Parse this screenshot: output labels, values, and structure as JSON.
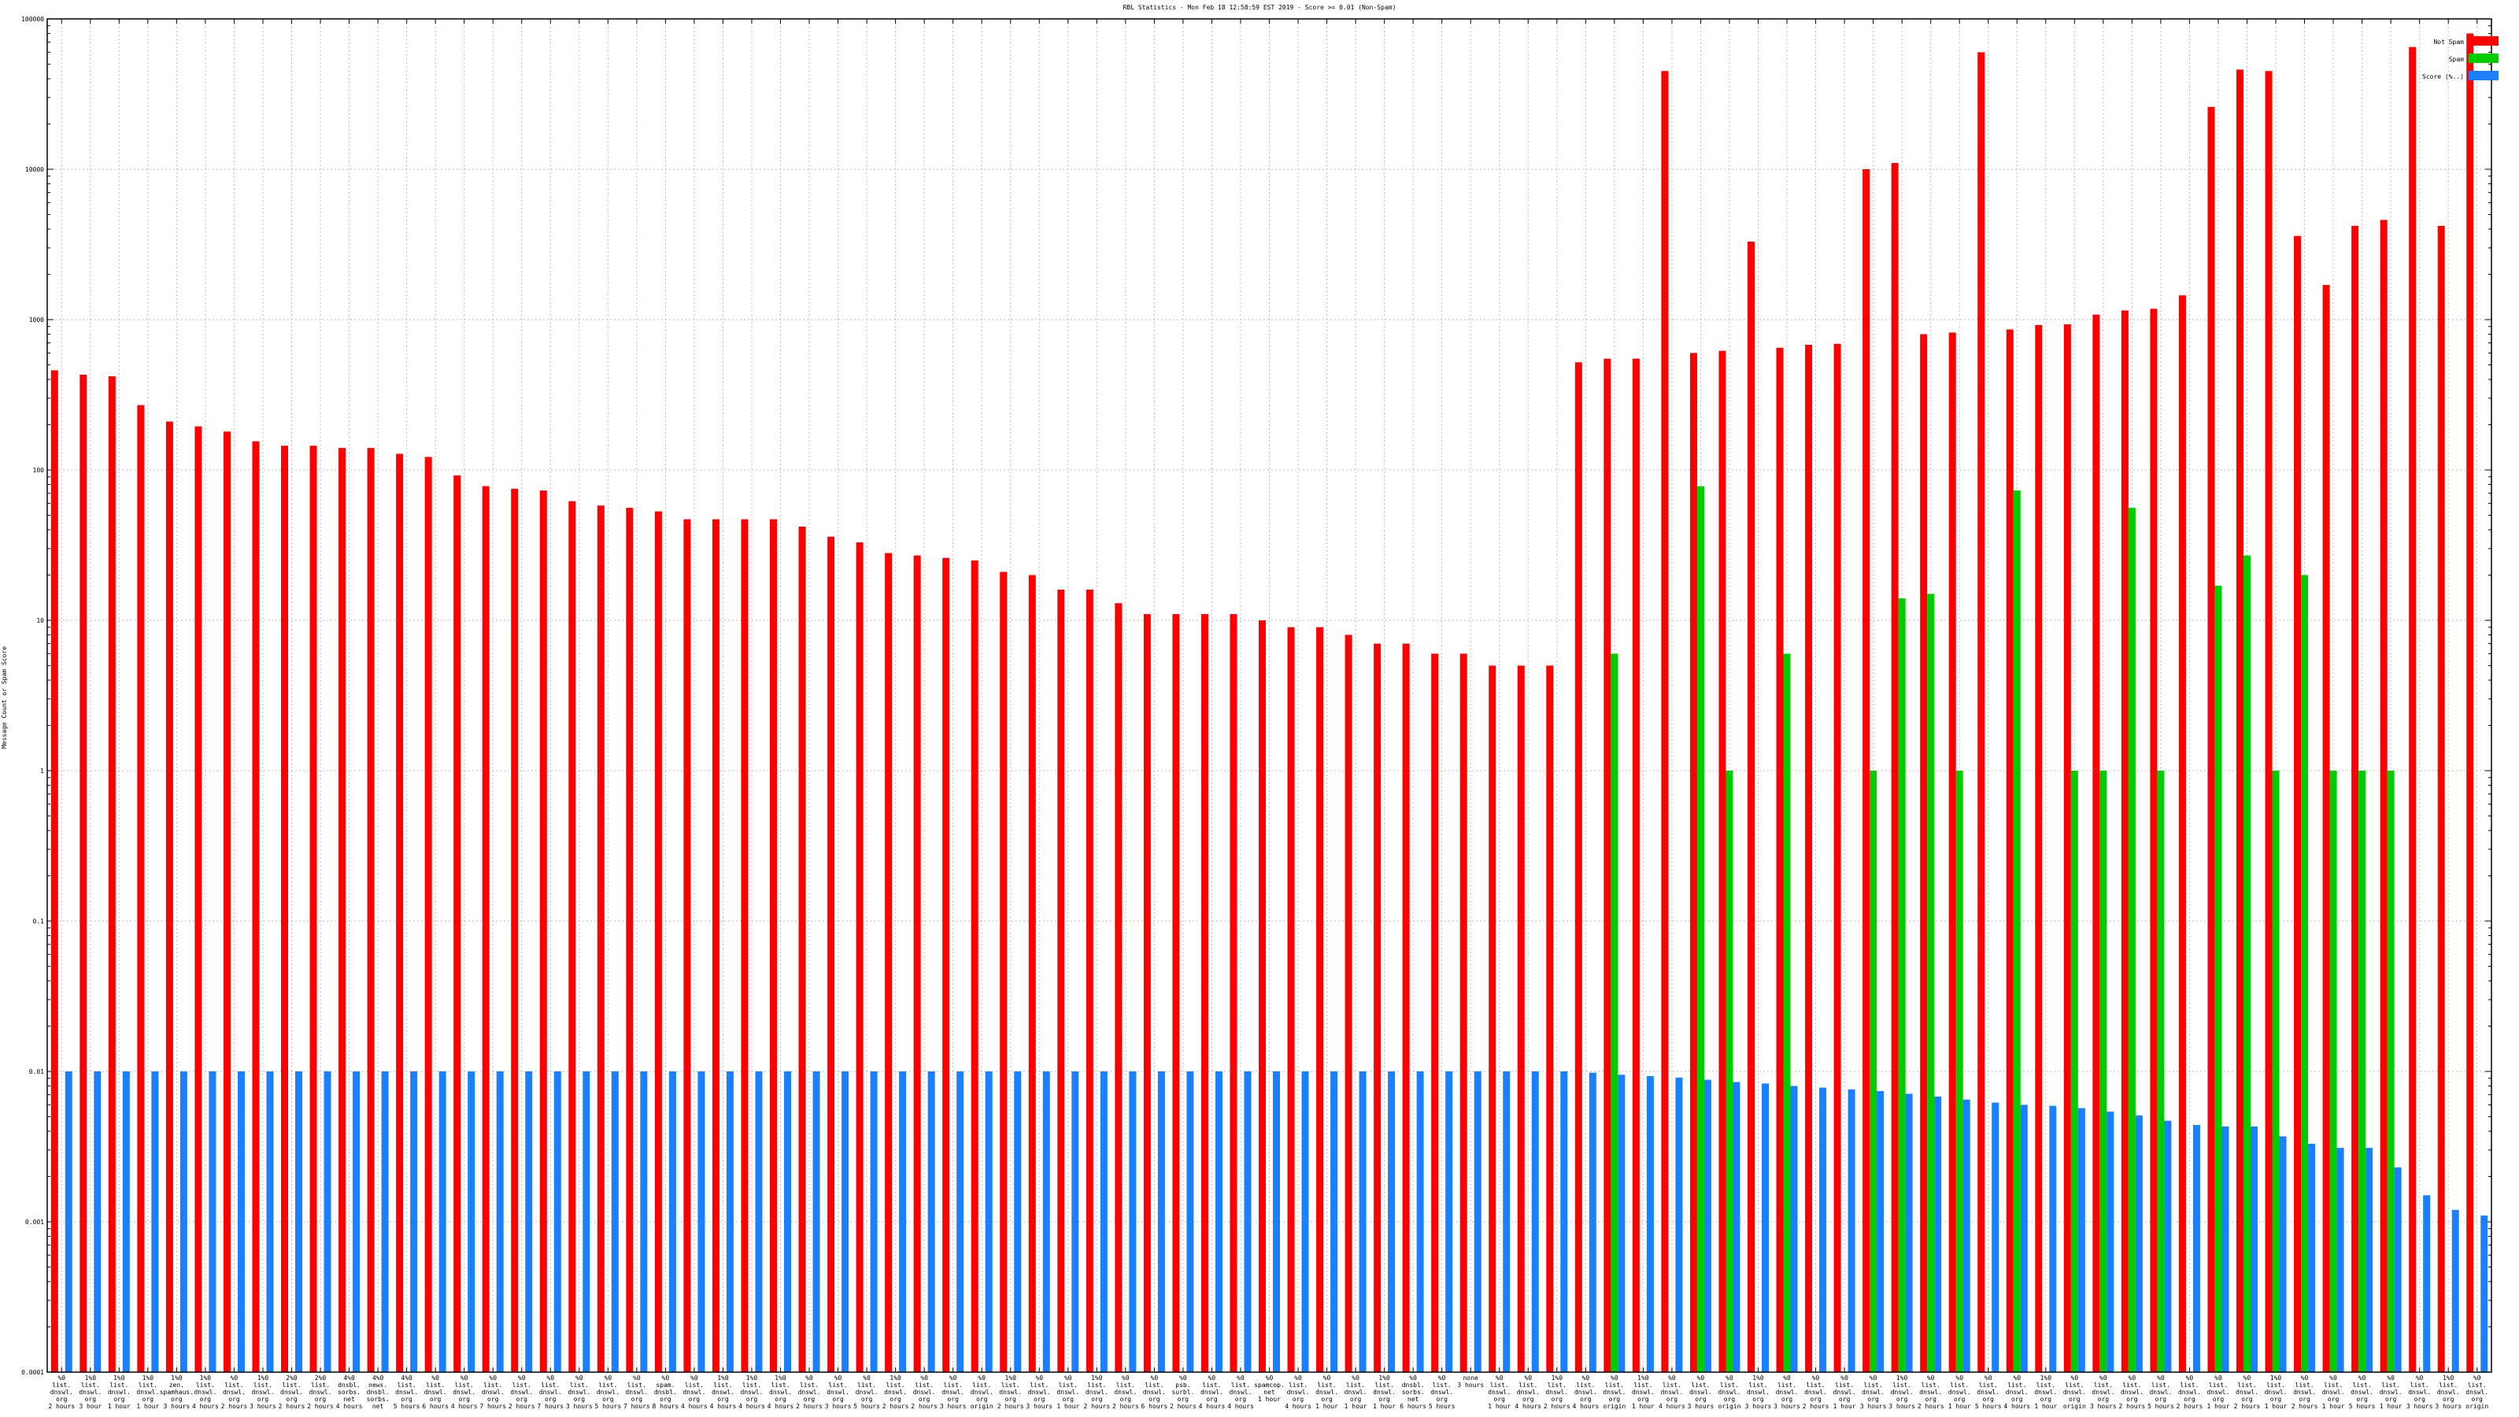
{
  "chart_data": {
    "type": "bar",
    "title": "RBL Statistics - Mon Feb 18 12:58:59 EST 2019 - Score >= 0.01 (Non-Spam)",
    "ylabel": "Message Count or Spam Score",
    "xlabel": "",
    "y_scale": "log",
    "ylim": [
      0.0001,
      100000
    ],
    "yticks": [
      {
        "v": 0.0001,
        "label": "0.0001"
      },
      {
        "v": 0.001,
        "label": "0.001"
      },
      {
        "v": 0.01,
        "label": "0.01"
      },
      {
        "v": 0.1,
        "label": "0.1"
      },
      {
        "v": 1,
        "label": "1"
      },
      {
        "v": 10,
        "label": "10"
      },
      {
        "v": 100,
        "label": "100"
      },
      {
        "v": 1000,
        "label": "1000"
      },
      {
        "v": 10000,
        "label": "10000"
      },
      {
        "v": 100000,
        "label": "100000"
      }
    ],
    "grid": true,
    "legend_position": "top-right",
    "categories": [
      [
        "%0",
        "list.",
        "dnswl.",
        "org",
        "2 hours"
      ],
      [
        "1%0",
        "list.",
        "dnswl.",
        "org",
        "3 hour"
      ],
      [
        "1%0",
        "list.",
        "dnswl.",
        "org",
        "1 hour"
      ],
      [
        "1%0",
        "list.",
        "dnswl.",
        "org",
        "1 hour"
      ],
      [
        "1%0",
        "zen.",
        "spamhaus.",
        "org",
        "3 hours"
      ],
      [
        "1%0",
        "list.",
        "dnswl.",
        "org",
        "4 hours"
      ],
      [
        "%0",
        "list.",
        "dnswl.",
        "org",
        "2 hours"
      ],
      [
        "1%0",
        "list.",
        "dnswl.",
        "org",
        "3 hours"
      ],
      [
        "2%0",
        "list.",
        "dnswl.",
        "org",
        "2 hours"
      ],
      [
        "2%0",
        "list.",
        "dnswl.",
        "org",
        "2 hours"
      ],
      [
        "4%0",
        "dnsbl.",
        "sorbs.",
        "net",
        "4 hours"
      ],
      [
        "4%0",
        "news.",
        "dnsbl.",
        "sorbs.",
        "net"
      ],
      [
        "4%0",
        "list.",
        "dnswl.",
        "org",
        "5 hours"
      ],
      [
        "%0",
        "list.",
        "dnswl.",
        "org",
        "6 hours"
      ],
      [
        "%0",
        "list.",
        "dnswl.",
        "org",
        "4 hours"
      ],
      [
        "%0",
        "list.",
        "dnswl.",
        "org",
        "7 hours"
      ],
      [
        "%0",
        "list.",
        "dnswl.",
        "org",
        "2 hours"
      ],
      [
        "%0",
        "list.",
        "dnswl.",
        "org",
        "7 hours"
      ],
      [
        "%0",
        "list.",
        "dnswl.",
        "org",
        "3 hours"
      ],
      [
        "%0",
        "list.",
        "dnswl.",
        "org",
        "5 hours"
      ],
      [
        "%0",
        "list.",
        "dnswl.",
        "org",
        "7 hours"
      ],
      [
        "%0",
        "spam.",
        "dnsbl.",
        "org",
        "8 hours"
      ],
      [
        "%0",
        "list.",
        "dnswl.",
        "org",
        "4 hours"
      ],
      [
        "1%0",
        "list.",
        "dnswl.",
        "org",
        "4 hours"
      ],
      [
        "1%0",
        "list.",
        "dnswl.",
        "org",
        "4 hours"
      ],
      [
        "1%0",
        "list.",
        "dnswl.",
        "org",
        "4 hours"
      ],
      [
        "%0",
        "list.",
        "dnswl.",
        "org",
        "2 hours"
      ],
      [
        "%0",
        "list.",
        "dnswl.",
        "org",
        "3 hours"
      ],
      [
        "%0",
        "list.",
        "dnswl.",
        "org",
        "5 hours"
      ],
      [
        "1%0",
        "list.",
        "dnswl.",
        "org",
        "2 hours"
      ],
      [
        "%0",
        "list.",
        "dnswl.",
        "org",
        "2 hours"
      ],
      [
        "%0",
        "list.",
        "dnswl.",
        "org",
        "3 hours"
      ],
      [
        "%0",
        "list.",
        "dnswl.",
        "org",
        "origin"
      ],
      [
        "1%0",
        "list.",
        "dnswl.",
        "org",
        "2 hours"
      ],
      [
        "%0",
        "list.",
        "dnswl.",
        "org",
        "3 hours"
      ],
      [
        "%0",
        "list.",
        "dnswl.",
        "org",
        "1 hour"
      ],
      [
        "1%0",
        "list.",
        "dnswl.",
        "org",
        "2 hours"
      ],
      [
        "%0",
        "list.",
        "dnswl.",
        "org",
        "2 hours"
      ],
      [
        "%0",
        "list.",
        "dnswl.",
        "org",
        "6 hours"
      ],
      [
        "%0",
        "psb.",
        "surbl.",
        "org",
        "2 hours"
      ],
      [
        "%0",
        "list.",
        "dnswl.",
        "org",
        "4 hours"
      ],
      [
        "%0",
        "list.",
        "dnswl.",
        "org",
        "4 hours"
      ],
      [
        "%0",
        "spamcop.",
        "net",
        "",
        "1 hour"
      ],
      [
        "%0",
        "list.",
        "dnswl.",
        "org",
        "4 hours"
      ],
      [
        "%0",
        "list.",
        "dnswl.",
        "org",
        "1 hour"
      ],
      [
        "%0",
        "list.",
        "dnswl.",
        "org",
        "1 hour"
      ],
      [
        "1%0",
        "list.",
        "dnswl.",
        "org",
        "1 hour"
      ],
      [
        "%0",
        "dnsbl.",
        "sorbs.",
        "net",
        "6 hours"
      ],
      [
        "%0",
        "list.",
        "dnswl.",
        "org",
        "5 hours"
      ],
      [
        "none",
        "",
        "",
        "",
        "3 hours"
      ],
      [
        "%0",
        "list.",
        "dnswl.",
        "org",
        "1 hour"
      ],
      [
        "%0",
        "list.",
        "dnswl.",
        "org",
        "4 hours"
      ],
      [
        "1%0",
        "list.",
        "dnswl.",
        "org",
        "2 hours"
      ],
      [
        "%0",
        "list.",
        "dnswl.",
        "org",
        "4 hours"
      ],
      [
        "%0",
        "list.",
        "dnswl.",
        "org",
        "origin"
      ],
      [
        "1%0",
        "list.",
        "dnswl.",
        "org",
        "1 hour"
      ],
      [
        "%0",
        "list.",
        "dnswl.",
        "org",
        "4 hours"
      ],
      [
        "%0",
        "list.",
        "dnswl.",
        "org",
        "3 hours"
      ],
      [
        "%0",
        "list.",
        "dnswl.",
        "org",
        "origin"
      ],
      [
        "1%0",
        "list.",
        "dnswl.",
        "org",
        "3 hours"
      ],
      [
        "%0",
        "list.",
        "dnswl.",
        "org",
        "3 hours"
      ],
      [
        "%0",
        "list.",
        "dnswl.",
        "org",
        "2 hours"
      ],
      [
        "%0",
        "list.",
        "dnswl.",
        "org",
        "1 hour"
      ],
      [
        "%0",
        "list.",
        "dnswl.",
        "org",
        "3 hours"
      ],
      [
        "1%0",
        "list.",
        "dnswl.",
        "org",
        "3 hours"
      ],
      [
        "%0",
        "list.",
        "dnswl.",
        "org",
        "2 hours"
      ],
      [
        "%0",
        "list.",
        "dnswl.",
        "org",
        "1 hour"
      ],
      [
        "%0",
        "list.",
        "dnswl.",
        "org",
        "5 hours"
      ],
      [
        "%0",
        "list.",
        "dnswl.",
        "org",
        "4 hours"
      ],
      [
        "1%0",
        "list.",
        "dnswl.",
        "org",
        "1 hour"
      ],
      [
        "%0",
        "list.",
        "dnswl.",
        "org",
        "origin"
      ],
      [
        "%0",
        "list.",
        "dnswl.",
        "org",
        "3 hours"
      ],
      [
        "%0",
        "list.",
        "dnswl.",
        "org",
        "2 hours"
      ],
      [
        "%0",
        "list.",
        "dnswl.",
        "org",
        "5 hours"
      ],
      [
        "%0",
        "list.",
        "dnswl.",
        "org",
        "2 hours"
      ],
      [
        "%0",
        "list.",
        "dnswl.",
        "org",
        "1 hour"
      ],
      [
        "%0",
        "list.",
        "dnswl.",
        "org",
        "2 hours"
      ],
      [
        "1%0",
        "list.",
        "dnswl.",
        "org",
        "1 hour"
      ],
      [
        "%0",
        "list.",
        "dnswl.",
        "org",
        "2 hours"
      ],
      [
        "%0",
        "list.",
        "dnswl.",
        "org",
        "1 hour"
      ],
      [
        "%0",
        "list.",
        "dnswl.",
        "org",
        "5 hours"
      ],
      [
        "%0",
        "list.",
        "dnswl.",
        "org",
        "1 hour"
      ],
      [
        "%0",
        "list.",
        "dnswl.",
        "org",
        "3 hours"
      ],
      [
        "1%0",
        "list.",
        "dnswl.",
        "org",
        "3 hours"
      ],
      [
        "%0",
        "list.",
        "dnswl.",
        "org",
        "origin"
      ]
    ],
    "series": [
      {
        "name": "Not Spam",
        "color": "#ff0000",
        "values": [
          460,
          430,
          420,
          270,
          210,
          195,
          180,
          155,
          145,
          145,
          140,
          140,
          128,
          122,
          92,
          78,
          75,
          73,
          62,
          58,
          56,
          53,
          47,
          47,
          47,
          47,
          42,
          36,
          33,
          28,
          27,
          26,
          25,
          21,
          20,
          16,
          16,
          13,
          11,
          11,
          11,
          11,
          10,
          9,
          9,
          8,
          7,
          7,
          6,
          6,
          5,
          5,
          5,
          520,
          550,
          550,
          45000,
          600,
          620,
          3300,
          650,
          680,
          690,
          10000,
          11000,
          800,
          820,
          60000,
          860,
          920,
          930,
          1080,
          1150,
          1180,
          1450,
          26000,
          46000,
          45000,
          3600,
          1700,
          4200,
          4600,
          65000,
          4200,
          80000
        ]
      },
      {
        "name": "Spam",
        "color": "#00cc00",
        "values": [
          null,
          null,
          null,
          null,
          null,
          null,
          null,
          null,
          null,
          null,
          null,
          null,
          null,
          null,
          null,
          null,
          null,
          null,
          null,
          null,
          null,
          null,
          null,
          null,
          null,
          null,
          null,
          null,
          null,
          null,
          null,
          null,
          null,
          null,
          null,
          null,
          null,
          null,
          null,
          null,
          null,
          null,
          null,
          null,
          null,
          null,
          null,
          null,
          null,
          null,
          null,
          null,
          null,
          null,
          6,
          null,
          null,
          78,
          1,
          null,
          6,
          null,
          null,
          1,
          14,
          15,
          1,
          null,
          73,
          null,
          1,
          1,
          56,
          1,
          null,
          17,
          27,
          1,
          20,
          1,
          1,
          1,
          null,
          null,
          null
        ]
      },
      {
        "name": "Score (%..)",
        "color": "#1a80ff",
        "values": [
          0.01,
          0.01,
          0.01,
          0.01,
          0.01,
          0.01,
          0.01,
          0.01,
          0.01,
          0.01,
          0.01,
          0.01,
          0.01,
          0.01,
          0.01,
          0.01,
          0.01,
          0.01,
          0.01,
          0.01,
          0.01,
          0.01,
          0.01,
          0.01,
          0.01,
          0.01,
          0.01,
          0.01,
          0.01,
          0.01,
          0.01,
          0.01,
          0.01,
          0.01,
          0.01,
          0.01,
          0.01,
          0.01,
          0.01,
          0.01,
          0.01,
          0.01,
          0.01,
          0.01,
          0.01,
          0.01,
          0.01,
          0.01,
          0.01,
          0.01,
          0.01,
          0.01,
          0.01,
          0.0098,
          0.0095,
          0.0093,
          0.0091,
          0.0088,
          0.0085,
          0.0083,
          0.008,
          0.0078,
          0.0076,
          0.0074,
          0.0071,
          0.0068,
          0.0065,
          0.0062,
          0.006,
          0.0059,
          0.0057,
          0.0054,
          0.0051,
          0.0047,
          0.0044,
          0.0043,
          0.0043,
          0.0037,
          0.0033,
          0.0031,
          0.0031,
          0.0023,
          0.0015,
          0.0012,
          0.0011
        ]
      }
    ]
  }
}
